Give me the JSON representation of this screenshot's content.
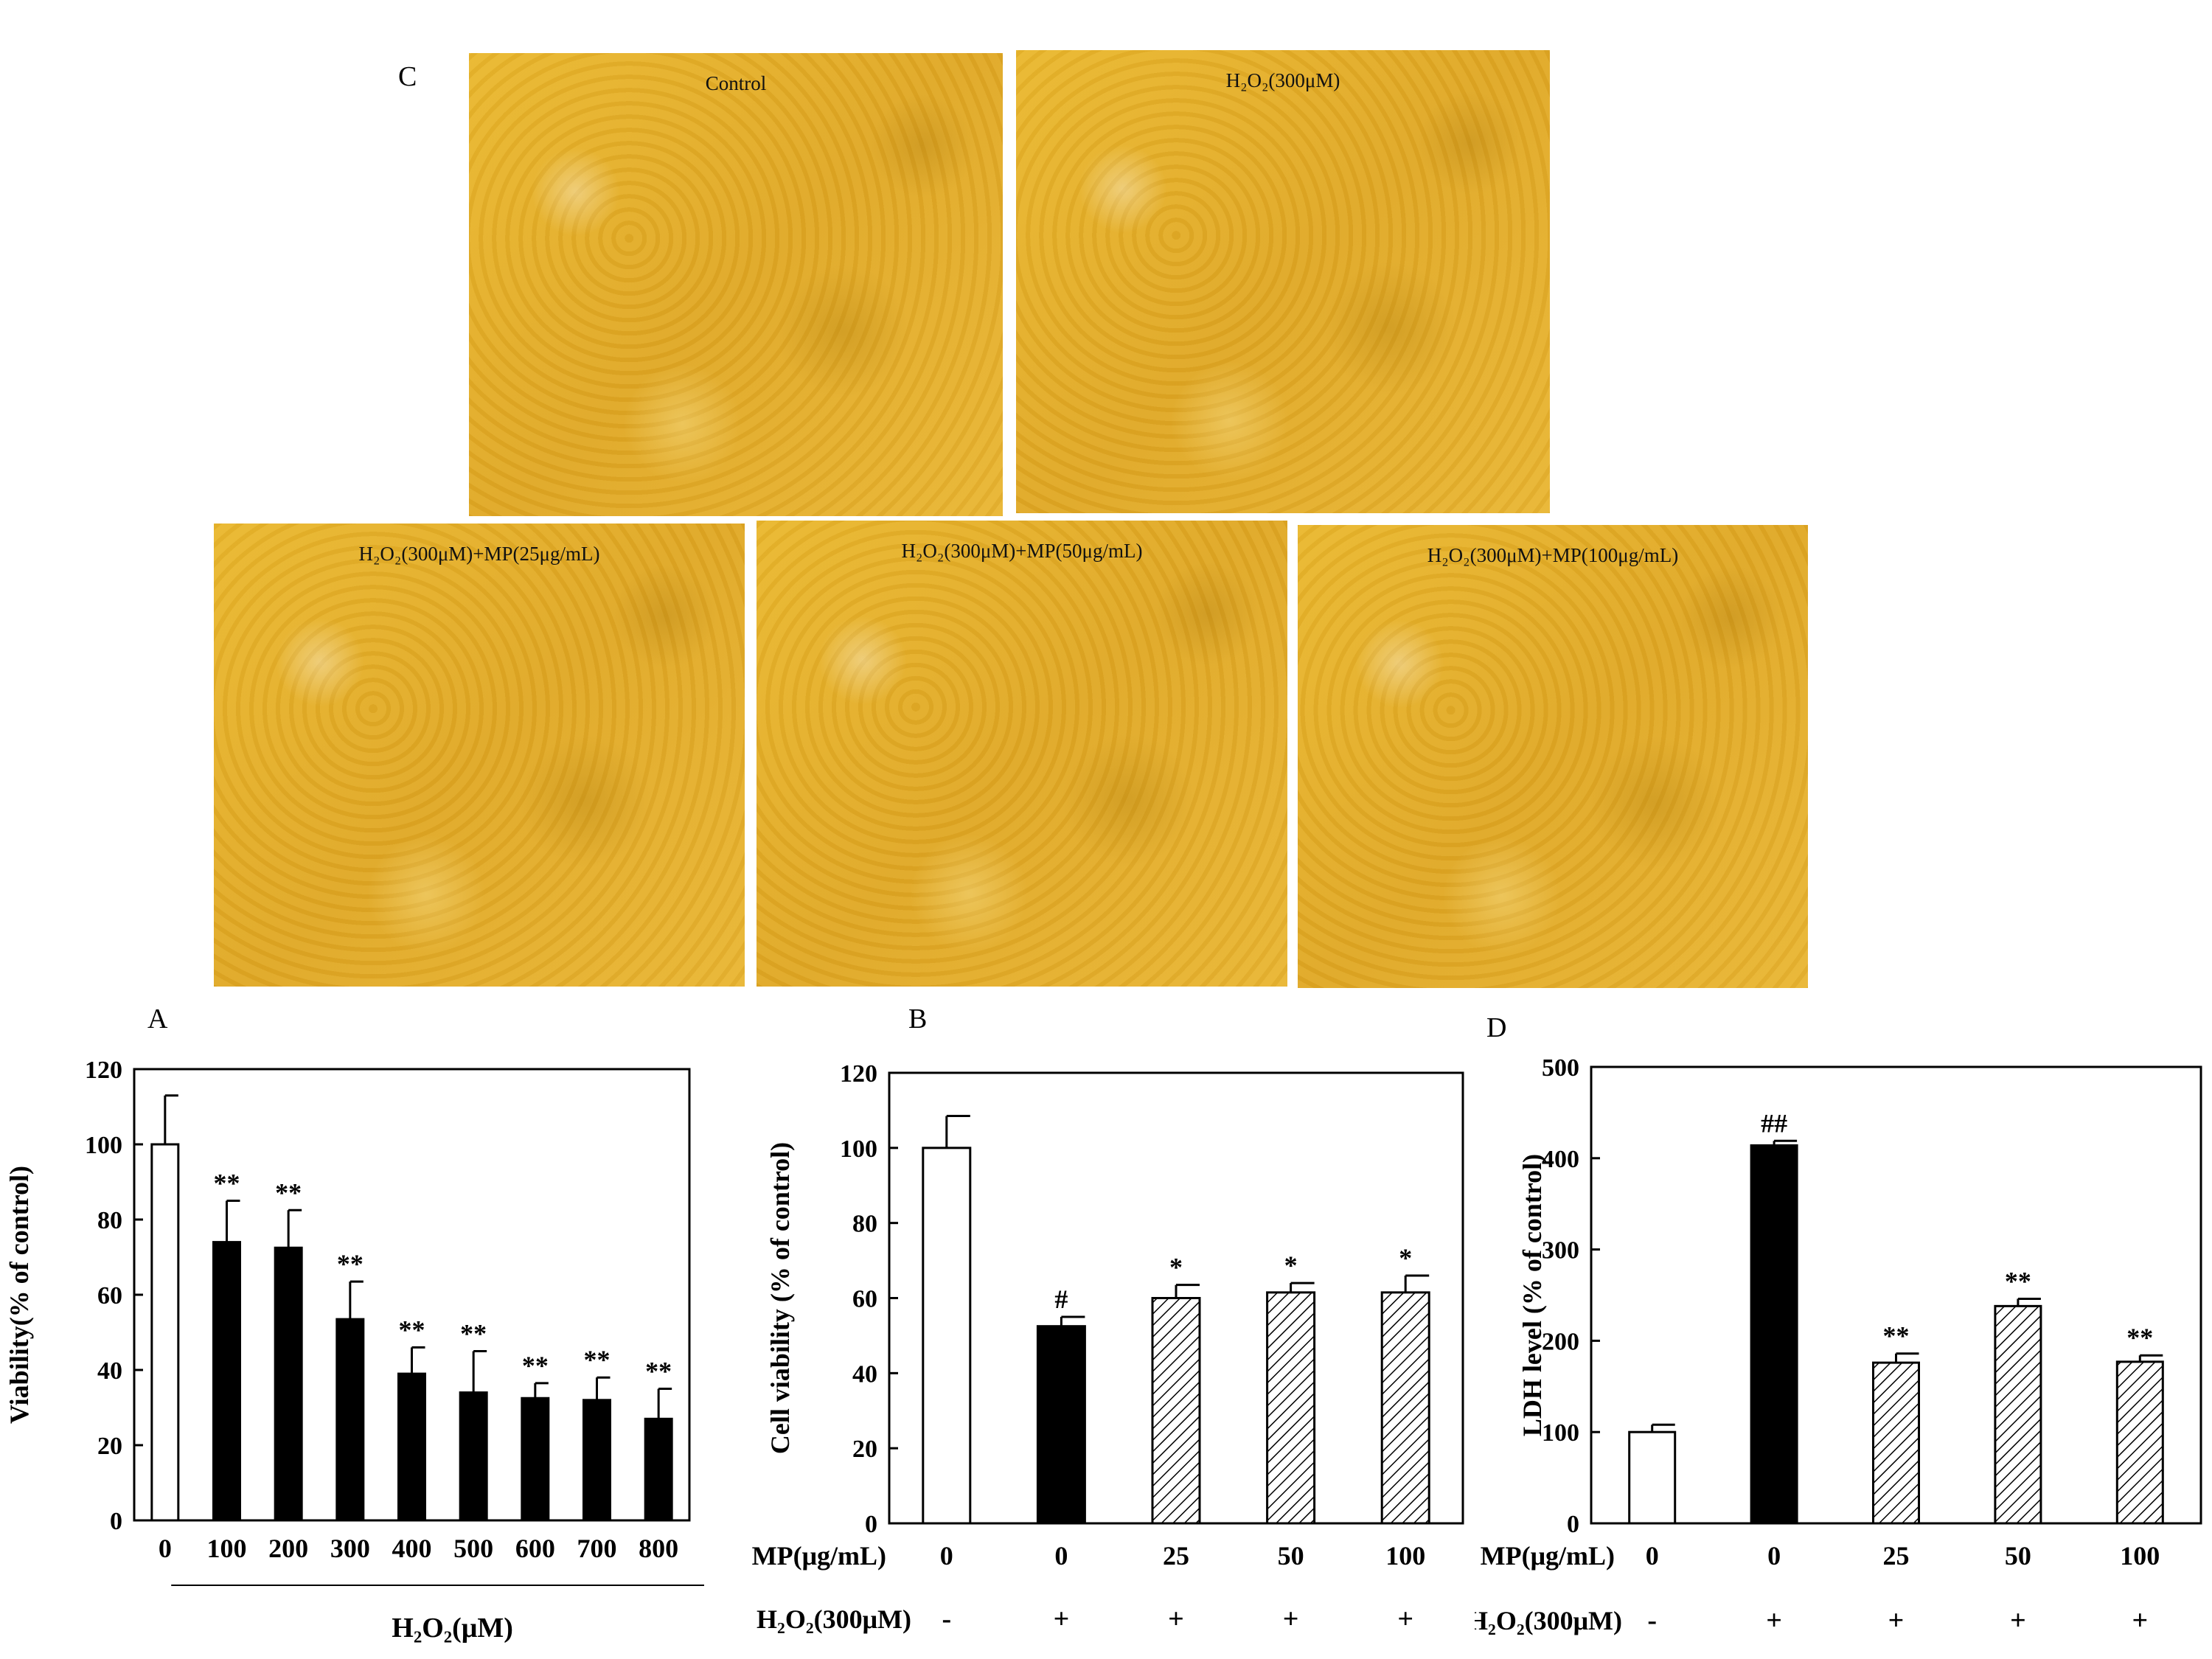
{
  "panel_c": {
    "letter": "C",
    "images": [
      {
        "label": "Control"
      },
      {
        "label": "H₂O₂(300μM)"
      },
      {
        "label": "H₂O₂(300μM)+MP(25μg/mL)"
      },
      {
        "label": "H₂O₂(300μM)+MP(50μg/mL)"
      },
      {
        "label": "H₂O₂(300μM)+MP(100μg/mL)"
      }
    ]
  },
  "colors": {
    "white_bar": "#ffffff",
    "black_bar": "#000000",
    "hatch": "#000000"
  },
  "chart_data": [
    {
      "panel": "A",
      "type": "bar",
      "ylabel": "Viability(% of  control)",
      "xlabel": "H₂O₂(μM)",
      "ylim": [
        0,
        120
      ],
      "yticks": [
        0,
        20,
        40,
        60,
        80,
        100,
        120
      ],
      "categories": [
        "0",
        "100",
        "200",
        "300",
        "400",
        "500",
        "600",
        "700",
        "800"
      ],
      "values": [
        100,
        74,
        72.5,
        53.5,
        39,
        34,
        32.5,
        32,
        27
      ],
      "errors": [
        13,
        11,
        10,
        10,
        7,
        11,
        4,
        6,
        8
      ],
      "fills": [
        "white",
        "black",
        "black",
        "black",
        "black",
        "black",
        "black",
        "black",
        "black"
      ],
      "annotations": [
        "",
        "**",
        "**",
        "**",
        "**",
        "**",
        "**",
        "**",
        "**"
      ]
    },
    {
      "panel": "B",
      "type": "bar",
      "ylabel": "Cell viability (% of control)",
      "ylim": [
        0,
        120
      ],
      "yticks": [
        0,
        20,
        40,
        60,
        80,
        100,
        120
      ],
      "row_labels": [
        "MP(μg/mL)",
        "H₂O₂(300μM)"
      ],
      "categories": [
        "0",
        "0",
        "25",
        "50",
        "100"
      ],
      "h2o2_row": [
        "-",
        "+",
        "+",
        "+",
        "+"
      ],
      "values": [
        100,
        52.5,
        60,
        61.5,
        61.5
      ],
      "errors": [
        8.5,
        2.5,
        3.5,
        2.5,
        4.5
      ],
      "fills": [
        "white",
        "black",
        "hatch",
        "hatch",
        "hatch"
      ],
      "annotations": [
        "",
        "#",
        "*",
        "*",
        "*"
      ]
    },
    {
      "panel": "D",
      "type": "bar",
      "ylabel": "LDH level (% of control)",
      "ylim": [
        0,
        500
      ],
      "yticks": [
        0,
        100,
        200,
        300,
        400,
        500
      ],
      "row_labels": [
        "MP(μg/mL)",
        "H₂O₂(300μM)"
      ],
      "categories": [
        "0",
        "0",
        "25",
        "50",
        "100"
      ],
      "h2o2_row": [
        "-",
        "+",
        "+",
        "+",
        "+"
      ],
      "values": [
        100,
        414,
        176,
        238,
        177
      ],
      "errors": [
        8,
        5,
        10,
        8,
        7
      ],
      "fills": [
        "white",
        "black",
        "hatch",
        "hatch",
        "hatch"
      ],
      "annotations": [
        "",
        "##",
        "**",
        "**",
        "**"
      ]
    }
  ]
}
